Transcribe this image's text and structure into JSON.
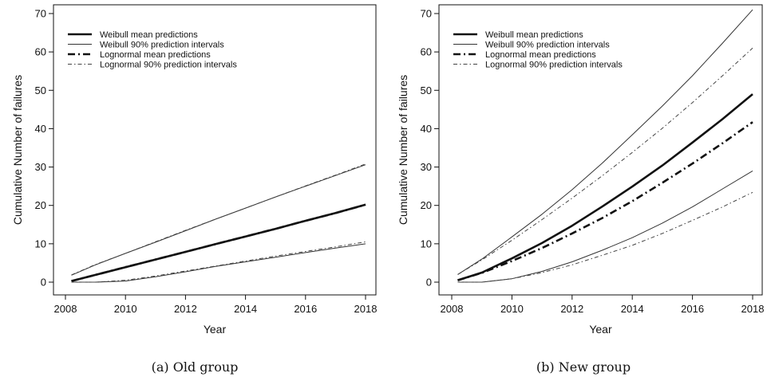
{
  "chart_data": [
    {
      "type": "line",
      "caption": "(a) Old group",
      "xlabel": "Year",
      "ylabel": "Cumulative Number of failures",
      "xlim": [
        2008,
        2018
      ],
      "ylim": [
        0,
        70
      ],
      "xticks": [
        2008,
        2010,
        2012,
        2014,
        2016,
        2018
      ],
      "yticks": [
        0,
        10,
        20,
        30,
        40,
        50,
        60,
        70
      ],
      "legend_position": "top-left",
      "grid": false,
      "series": [
        {
          "name": "Weibull mean predictions",
          "style": "solid-thick",
          "x": [
            2008.2,
            2009,
            2010,
            2011,
            2012,
            2013,
            2014,
            2015,
            2016,
            2017,
            2018
          ],
          "y": [
            0.3,
            1.9,
            3.9,
            5.9,
            7.9,
            9.9,
            11.9,
            13.9,
            16.0,
            18.0,
            20.2
          ]
        },
        {
          "name": "Weibull 90% prediction intervals",
          "style": "solid-thin",
          "band": "upper",
          "x": [
            2008.2,
            2009,
            2010,
            2011,
            2012,
            2013,
            2014,
            2015,
            2016,
            2017,
            2018
          ],
          "y": [
            1.8,
            4.5,
            7.5,
            10.4,
            13.4,
            16.4,
            19.3,
            22.2,
            25.0,
            27.8,
            30.6
          ]
        },
        {
          "name": "Weibull 90% prediction intervals",
          "style": "solid-thin",
          "band": "lower",
          "x": [
            2008.2,
            2009,
            2010,
            2011,
            2012,
            2013,
            2014,
            2015,
            2016,
            2017,
            2018
          ],
          "y": [
            0,
            0,
            0.3,
            1.4,
            2.7,
            4.1,
            5.3,
            6.5,
            7.7,
            8.9,
            10.0
          ]
        },
        {
          "name": "Lognormal mean predictions",
          "style": "dashdot-thick",
          "x": [
            2008.2,
            2009,
            2010,
            2011,
            2012,
            2013,
            2014,
            2015,
            2016,
            2017,
            2018
          ],
          "y": [
            0.3,
            1.9,
            3.9,
            5.9,
            7.9,
            9.9,
            11.9,
            13.9,
            16.0,
            18.0,
            20.2
          ]
        },
        {
          "name": "Lognormal 90% prediction intervals",
          "style": "dashdot-thin",
          "band": "upper",
          "x": [
            2008.2,
            2009,
            2010,
            2011,
            2012,
            2013,
            2014,
            2015,
            2016,
            2017,
            2018
          ],
          "y": [
            1.9,
            4.6,
            7.5,
            10.5,
            13.5,
            16.4,
            19.3,
            22.2,
            25.1,
            27.9,
            30.8
          ]
        },
        {
          "name": "Lognormal 90% prediction intervals",
          "style": "dashdot-thin",
          "band": "lower",
          "x": [
            2008.2,
            2009,
            2010,
            2011,
            2012,
            2013,
            2014,
            2015,
            2016,
            2017,
            2018
          ],
          "y": [
            0,
            0,
            0.5,
            1.6,
            2.9,
            4.2,
            5.5,
            6.8,
            8.0,
            9.2,
            10.5
          ]
        }
      ]
    },
    {
      "type": "line",
      "caption": "(b) New group",
      "xlabel": "Year",
      "ylabel": "Cumulative Number of failures",
      "xlim": [
        2008,
        2018
      ],
      "ylim": [
        0,
        70
      ],
      "xticks": [
        2008,
        2010,
        2012,
        2014,
        2016,
        2018
      ],
      "yticks": [
        0,
        10,
        20,
        30,
        40,
        50,
        60,
        70
      ],
      "legend_position": "top-left",
      "grid": false,
      "series": [
        {
          "name": "Weibull mean predictions",
          "style": "solid-thick",
          "x": [
            2008.2,
            2009,
            2010,
            2011,
            2012,
            2013,
            2014,
            2015,
            2016,
            2017,
            2018
          ],
          "y": [
            0.5,
            2.5,
            6.2,
            10.2,
            14.7,
            19.7,
            24.9,
            30.4,
            36.4,
            42.5,
            49.0
          ]
        },
        {
          "name": "Weibull 90% prediction intervals",
          "style": "solid-thin",
          "band": "upper",
          "x": [
            2008.2,
            2009,
            2010,
            2011,
            2012,
            2013,
            2014,
            2015,
            2016,
            2017,
            2018
          ],
          "y": [
            2.0,
            6.0,
            11.8,
            17.7,
            24.1,
            31.0,
            38.4,
            45.9,
            53.8,
            62.3,
            71.0
          ]
        },
        {
          "name": "Weibull 90% prediction intervals",
          "style": "solid-thin",
          "band": "lower",
          "x": [
            2008.2,
            2009,
            2010,
            2011,
            2012,
            2013,
            2014,
            2015,
            2016,
            2017,
            2018
          ],
          "y": [
            0,
            0,
            0.9,
            2.8,
            5.3,
            8.3,
            11.6,
            15.4,
            19.6,
            24.3,
            29.0
          ]
        },
        {
          "name": "Lognormal mean predictions",
          "style": "dashdot-thick",
          "x": [
            2008.2,
            2009,
            2010,
            2011,
            2012,
            2013,
            2014,
            2015,
            2016,
            2017,
            2018
          ],
          "y": [
            0.5,
            2.4,
            5.5,
            8.9,
            12.7,
            16.7,
            21.1,
            25.9,
            30.9,
            36.2,
            41.7
          ]
        },
        {
          "name": "Lognormal 90% prediction intervals",
          "style": "dashdot-thin",
          "band": "upper",
          "x": [
            2008.2,
            2009,
            2010,
            2011,
            2012,
            2013,
            2014,
            2015,
            2016,
            2017,
            2018
          ],
          "y": [
            2.0,
            5.8,
            10.9,
            16.3,
            21.9,
            27.7,
            33.8,
            40.1,
            46.8,
            53.8,
            61.0
          ]
        },
        {
          "name": "Lognormal 90% prediction intervals",
          "style": "dashdot-thin",
          "band": "lower",
          "x": [
            2008.2,
            2009,
            2010,
            2011,
            2012,
            2013,
            2014,
            2015,
            2016,
            2017,
            2018
          ],
          "y": [
            0,
            0,
            0.9,
            2.5,
            4.5,
            7.0,
            9.6,
            12.7,
            16.1,
            19.6,
            23.4
          ]
        }
      ]
    }
  ],
  "legend": [
    {
      "label": "Weibull mean predictions",
      "style": "solid-thick"
    },
    {
      "label": "Weibull 90% prediction intervals",
      "style": "solid-thin"
    },
    {
      "label": "Lognormal mean predictions",
      "style": "dashdot-thick"
    },
    {
      "label": "Lognormal 90% prediction intervals",
      "style": "dashdot-thin"
    }
  ]
}
